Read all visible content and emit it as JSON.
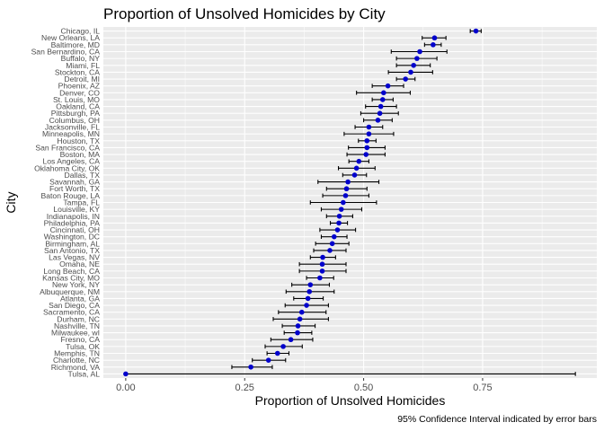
{
  "chart_data": {
    "type": "scatter",
    "title": "Proportion of Unsolved Homicides by City",
    "xlabel": "Proportion of Unsolved Homicides",
    "ylabel": "City",
    "caption": "95% Confidence Interval indicated by error bars",
    "xlim": [
      -0.047,
      0.99
    ],
    "x_ticks": [
      0,
      0.25,
      0.5,
      0.75
    ],
    "x_tick_labels": [
      "0.00",
      "0.25",
      "0.50",
      "0.75"
    ],
    "grid": true,
    "colors": {
      "panel": "#ebebeb",
      "grid_major": "#ffffff",
      "point": "#0000cc",
      "errorbar": "#000000"
    },
    "points": [
      {
        "city": "Chicago, IL",
        "estimate": 0.736,
        "low": 0.724,
        "high": 0.747
      },
      {
        "city": "New Orleans, LA",
        "estimate": 0.649,
        "low": 0.623,
        "high": 0.673
      },
      {
        "city": "Baltimore, MD",
        "estimate": 0.646,
        "low": 0.628,
        "high": 0.663
      },
      {
        "city": "San Bernardino, CA",
        "estimate": 0.618,
        "low": 0.558,
        "high": 0.675
      },
      {
        "city": "Buffalo, NY",
        "estimate": 0.612,
        "low": 0.569,
        "high": 0.654
      },
      {
        "city": "Miami, FL",
        "estimate": 0.605,
        "low": 0.569,
        "high": 0.64
      },
      {
        "city": "Stockton, CA",
        "estimate": 0.599,
        "low": 0.552,
        "high": 0.645
      },
      {
        "city": "Detroit, MI",
        "estimate": 0.588,
        "low": 0.569,
        "high": 0.608
      },
      {
        "city": "Phoenix, AZ",
        "estimate": 0.551,
        "low": 0.518,
        "high": 0.584
      },
      {
        "city": "Denver, CO",
        "estimate": 0.542,
        "low": 0.485,
        "high": 0.598
      },
      {
        "city": "St. Louis, MO",
        "estimate": 0.54,
        "low": 0.518,
        "high": 0.562
      },
      {
        "city": "Oakland, CA",
        "estimate": 0.536,
        "low": 0.504,
        "high": 0.569
      },
      {
        "city": "Pittsburgh, PA",
        "estimate": 0.534,
        "low": 0.494,
        "high": 0.573
      },
      {
        "city": "Columbus, OH",
        "estimate": 0.53,
        "low": 0.5,
        "high": 0.56
      },
      {
        "city": "Jacksonville, FL",
        "estimate": 0.511,
        "low": 0.482,
        "high": 0.54
      },
      {
        "city": "Minneapolis, MN",
        "estimate": 0.511,
        "low": 0.459,
        "high": 0.563
      },
      {
        "city": "Houston, TX",
        "estimate": 0.507,
        "low": 0.489,
        "high": 0.526
      },
      {
        "city": "San Francisco, CA",
        "estimate": 0.507,
        "low": 0.468,
        "high": 0.545
      },
      {
        "city": "Boston, MA",
        "estimate": 0.505,
        "low": 0.465,
        "high": 0.545
      },
      {
        "city": "Los Angeles, CA",
        "estimate": 0.49,
        "low": 0.469,
        "high": 0.511
      },
      {
        "city": "Oklahoma City, OK",
        "estimate": 0.485,
        "low": 0.447,
        "high": 0.524
      },
      {
        "city": "Dallas, TX",
        "estimate": 0.481,
        "low": 0.456,
        "high": 0.506
      },
      {
        "city": "Savannah, GA",
        "estimate": 0.467,
        "low": 0.404,
        "high": 0.532
      },
      {
        "city": "Fort Worth, TX",
        "estimate": 0.464,
        "low": 0.422,
        "high": 0.507
      },
      {
        "city": "Baton Rouge, LA",
        "estimate": 0.462,
        "low": 0.414,
        "high": 0.511
      },
      {
        "city": "Tampa, FL",
        "estimate": 0.457,
        "low": 0.388,
        "high": 0.527
      },
      {
        "city": "Louisville, KY",
        "estimate": 0.453,
        "low": 0.411,
        "high": 0.496
      },
      {
        "city": "Indianapolis, IN",
        "estimate": 0.449,
        "low": 0.422,
        "high": 0.477
      },
      {
        "city": "Philadelphia, PA",
        "estimate": 0.448,
        "low": 0.43,
        "high": 0.466
      },
      {
        "city": "Cincinnati, OH",
        "estimate": 0.445,
        "low": 0.408,
        "high": 0.483
      },
      {
        "city": "Washington, DC",
        "estimate": 0.438,
        "low": 0.411,
        "high": 0.465
      },
      {
        "city": "Birmingham, AL",
        "estimate": 0.434,
        "low": 0.399,
        "high": 0.469
      },
      {
        "city": "San Antonio, TX",
        "estimate": 0.429,
        "low": 0.395,
        "high": 0.463
      },
      {
        "city": "Las Vegas, NV",
        "estimate": 0.414,
        "low": 0.388,
        "high": 0.441
      },
      {
        "city": "Omaha, NE",
        "estimate": 0.413,
        "low": 0.365,
        "high": 0.463
      },
      {
        "city": "Long Beach, CA",
        "estimate": 0.413,
        "low": 0.365,
        "high": 0.463
      },
      {
        "city": "Kansas City, MO",
        "estimate": 0.408,
        "low": 0.38,
        "high": 0.437
      },
      {
        "city": "New York, NY",
        "estimate": 0.388,
        "low": 0.349,
        "high": 0.428
      },
      {
        "city": "Albuquerque, NM",
        "estimate": 0.386,
        "low": 0.337,
        "high": 0.438
      },
      {
        "city": "Atlanta, GA",
        "estimate": 0.383,
        "low": 0.353,
        "high": 0.415
      },
      {
        "city": "San Diego, CA",
        "estimate": 0.38,
        "low": 0.335,
        "high": 0.426
      },
      {
        "city": "Sacramento, CA",
        "estimate": 0.37,
        "low": 0.321,
        "high": 0.421
      },
      {
        "city": "Durham, NC",
        "estimate": 0.366,
        "low": 0.31,
        "high": 0.426
      },
      {
        "city": "Nashville, TN",
        "estimate": 0.362,
        "low": 0.329,
        "high": 0.398
      },
      {
        "city": "Milwaukee, wI",
        "estimate": 0.361,
        "low": 0.333,
        "high": 0.391
      },
      {
        "city": "Fresno, CA",
        "estimate": 0.347,
        "low": 0.305,
        "high": 0.393
      },
      {
        "city": "Tulsa, OK",
        "estimate": 0.331,
        "low": 0.293,
        "high": 0.371
      },
      {
        "city": "Memphis, TN",
        "estimate": 0.319,
        "low": 0.297,
        "high": 0.343
      },
      {
        "city": "Charlotte, NC",
        "estimate": 0.3,
        "low": 0.266,
        "high": 0.336
      },
      {
        "city": "Richmond, VA",
        "estimate": 0.263,
        "low": 0.223,
        "high": 0.308
      },
      {
        "city": "Tulsa, AL",
        "estimate": 0.0,
        "low": 0.0,
        "high": 0.945
      }
    ]
  }
}
